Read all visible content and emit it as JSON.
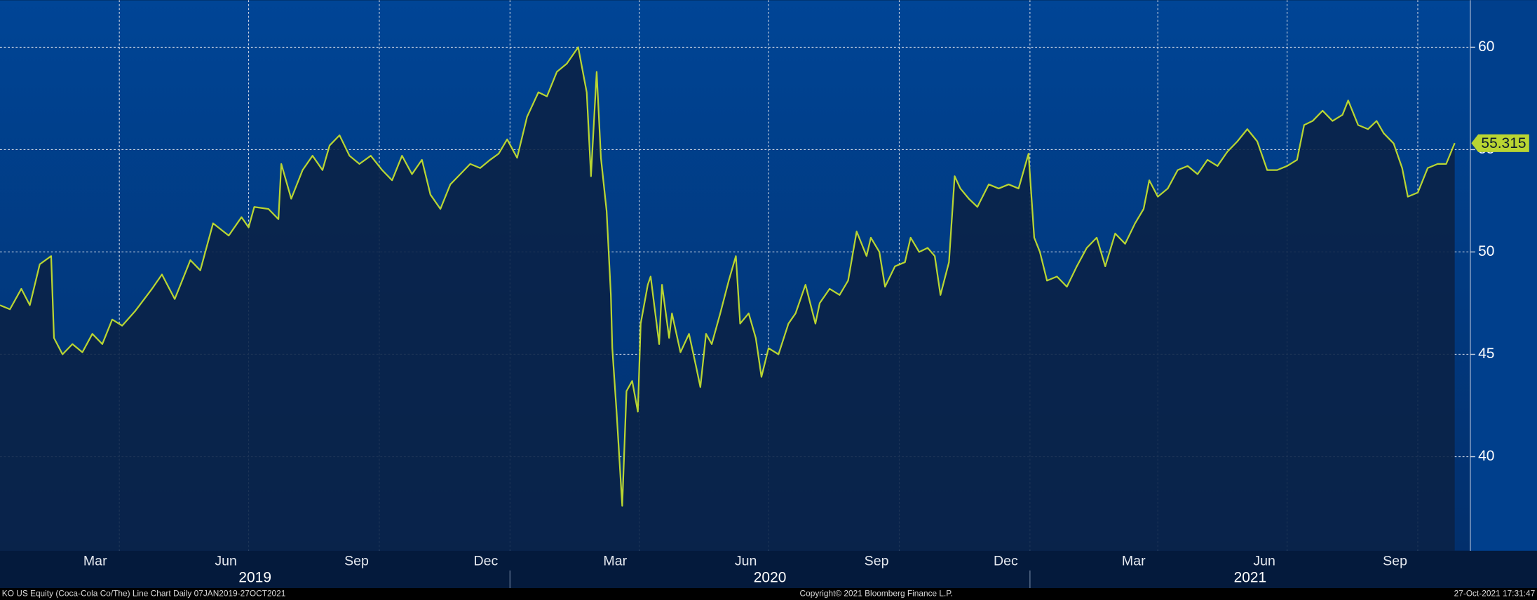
{
  "chart_data": {
    "type": "line",
    "footer_left": "KO US Equity (Coca-Cola Co/The) Line Chart  Daily 07JAN2019-27OCT2021",
    "footer_center": "Copyright© 2021 Bloomberg Finance L.P.",
    "footer_right": "27-Oct-2021 17:31:47",
    "xlim": [
      "2019-01-07",
      "2021-11-07"
    ],
    "ylim": [
      35.4,
      62.3
    ],
    "yticks": [
      40,
      45,
      50,
      55,
      60
    ],
    "xticks": [
      {
        "value": "2019-03-15",
        "label": "Mar"
      },
      {
        "value": "2019-06-15",
        "label": "Jun"
      },
      {
        "value": "2019-09-15",
        "label": "Sep"
      },
      {
        "value": "2019-12-15",
        "label": "Dec"
      },
      {
        "value": "2020-03-15",
        "label": "Mar"
      },
      {
        "value": "2020-06-15",
        "label": "Jun"
      },
      {
        "value": "2020-09-15",
        "label": "Sep"
      },
      {
        "value": "2020-12-15",
        "label": "Dec"
      },
      {
        "value": "2021-03-15",
        "label": "Mar"
      },
      {
        "value": "2021-06-15",
        "label": "Jun"
      },
      {
        "value": "2021-09-15",
        "label": "Sep"
      }
    ],
    "years": [
      "2019",
      "2020",
      "2021"
    ],
    "grid": true,
    "series": [
      {
        "name": "KO US Equity",
        "color": "#b9d532",
        "x": [
          "2019-01-07",
          "2019-01-14",
          "2019-01-22",
          "2019-01-28",
          "2019-02-04",
          "2019-02-12",
          "2019-02-14",
          "2019-02-20",
          "2019-02-27",
          "2019-03-06",
          "2019-03-13",
          "2019-03-20",
          "2019-03-27",
          "2019-04-03",
          "2019-04-12",
          "2019-04-24",
          "2019-05-01",
          "2019-05-10",
          "2019-05-21",
          "2019-05-28",
          "2019-06-06",
          "2019-06-17",
          "2019-06-26",
          "2019-07-01",
          "2019-07-05",
          "2019-07-15",
          "2019-07-22",
          "2019-07-24",
          "2019-07-31",
          "2019-08-08",
          "2019-08-15",
          "2019-08-22",
          "2019-08-27",
          "2019-09-03",
          "2019-09-10",
          "2019-09-17",
          "2019-09-25",
          "2019-10-03",
          "2019-10-10",
          "2019-10-17",
          "2019-10-24",
          "2019-10-31",
          "2019-11-06",
          "2019-11-13",
          "2019-11-20",
          "2019-11-27",
          "2019-12-04",
          "2019-12-11",
          "2019-12-18",
          "2019-12-24",
          "2019-12-30",
          "2020-01-06",
          "2020-01-13",
          "2020-01-21",
          "2020-01-27",
          "2020-02-03",
          "2020-02-10",
          "2020-02-18",
          "2020-02-24",
          "2020-02-27",
          "2020-03-02",
          "2020-03-05",
          "2020-03-09",
          "2020-03-12",
          "2020-03-13",
          "2020-03-16",
          "2020-03-20",
          "2020-03-23",
          "2020-03-27",
          "2020-03-31",
          "2020-04-02",
          "2020-04-07",
          "2020-04-09",
          "2020-04-15",
          "2020-04-17",
          "2020-04-22",
          "2020-04-24",
          "2020-04-30",
          "2020-05-06",
          "2020-05-11",
          "2020-05-14",
          "2020-05-18",
          "2020-05-22",
          "2020-05-28",
          "2020-06-03",
          "2020-06-08",
          "2020-06-11",
          "2020-06-17",
          "2020-06-22",
          "2020-06-26",
          "2020-07-01",
          "2020-07-08",
          "2020-07-15",
          "2020-07-20",
          "2020-07-27",
          "2020-08-03",
          "2020-08-06",
          "2020-08-13",
          "2020-08-20",
          "2020-08-26",
          "2020-09-01",
          "2020-09-08",
          "2020-09-11",
          "2020-09-17",
          "2020-09-21",
          "2020-09-28",
          "2020-10-05",
          "2020-10-09",
          "2020-10-15",
          "2020-10-21",
          "2020-10-26",
          "2020-10-30",
          "2020-11-05",
          "2020-11-09",
          "2020-11-13",
          "2020-11-19",
          "2020-11-25",
          "2020-12-03",
          "2020-12-10",
          "2020-12-17",
          "2020-12-24",
          "2020-12-31",
          "2021-01-04",
          "2021-01-08",
          "2021-01-13",
          "2021-01-20",
          "2021-01-27",
          "2021-02-03",
          "2021-02-10",
          "2021-02-17",
          "2021-02-23",
          "2021-03-02",
          "2021-03-09",
          "2021-03-16",
          "2021-03-22",
          "2021-03-26",
          "2021-04-01",
          "2021-04-08",
          "2021-04-15",
          "2021-04-22",
          "2021-04-29",
          "2021-05-06",
          "2021-05-13",
          "2021-05-20",
          "2021-05-27",
          "2021-06-03",
          "2021-06-10",
          "2021-06-17",
          "2021-06-24",
          "2021-07-01",
          "2021-07-08",
          "2021-07-13",
          "2021-07-19",
          "2021-07-26",
          "2021-08-02",
          "2021-08-09",
          "2021-08-13",
          "2021-08-20",
          "2021-08-27",
          "2021-09-02",
          "2021-09-07",
          "2021-09-14",
          "2021-09-20",
          "2021-09-24",
          "2021-10-01",
          "2021-10-08",
          "2021-10-15",
          "2021-10-21",
          "2021-10-27"
        ],
        "values": [
          47.4,
          47.2,
          48.2,
          47.4,
          49.4,
          49.8,
          45.8,
          45.0,
          45.5,
          45.1,
          46.0,
          45.5,
          46.7,
          46.4,
          47.1,
          48.2,
          48.9,
          47.7,
          49.6,
          49.1,
          51.4,
          50.8,
          51.7,
          51.2,
          52.2,
          52.1,
          51.6,
          54.3,
          52.6,
          54.0,
          54.7,
          54.0,
          55.2,
          55.7,
          54.7,
          54.3,
          54.7,
          54.0,
          53.5,
          54.7,
          53.8,
          54.5,
          52.8,
          52.1,
          53.3,
          53.8,
          54.3,
          54.1,
          54.5,
          54.8,
          55.5,
          54.6,
          56.6,
          57.8,
          57.6,
          58.8,
          59.2,
          60.0,
          57.8,
          53.7,
          58.8,
          54.6,
          52.0,
          47.9,
          45.3,
          42.2,
          37.6,
          43.2,
          43.7,
          42.2,
          46.5,
          48.4,
          48.8,
          45.5,
          48.4,
          45.8,
          47.0,
          45.1,
          46.0,
          44.4,
          43.4,
          46.0,
          45.5,
          47.0,
          48.6,
          49.8,
          46.5,
          47.0,
          45.8,
          43.9,
          45.3,
          45.0,
          46.5,
          47.0,
          48.4,
          46.5,
          47.5,
          48.2,
          47.9,
          48.6,
          51.0,
          49.8,
          50.7,
          50.0,
          48.3,
          49.3,
          49.5,
          50.7,
          50.0,
          50.2,
          49.8,
          47.9,
          49.5,
          53.7,
          53.1,
          52.6,
          52.2,
          53.3,
          53.1,
          53.3,
          53.1,
          54.8,
          50.7,
          50.0,
          48.6,
          48.8,
          48.3,
          49.3,
          50.2,
          50.7,
          49.3,
          50.9,
          50.4,
          51.4,
          52.1,
          53.5,
          52.7,
          53.1,
          54.0,
          54.2,
          53.8,
          54.5,
          54.2,
          54.9,
          55.4,
          56.0,
          55.4,
          54.0,
          54.0,
          54.2,
          54.5,
          56.2,
          56.4,
          56.9,
          56.4,
          56.7,
          57.4,
          56.2,
          56.0,
          56.4,
          55.8,
          55.3,
          54.1,
          52.7,
          52.9,
          54.1,
          54.3,
          54.3,
          55.315
        ]
      }
    ]
  }
}
